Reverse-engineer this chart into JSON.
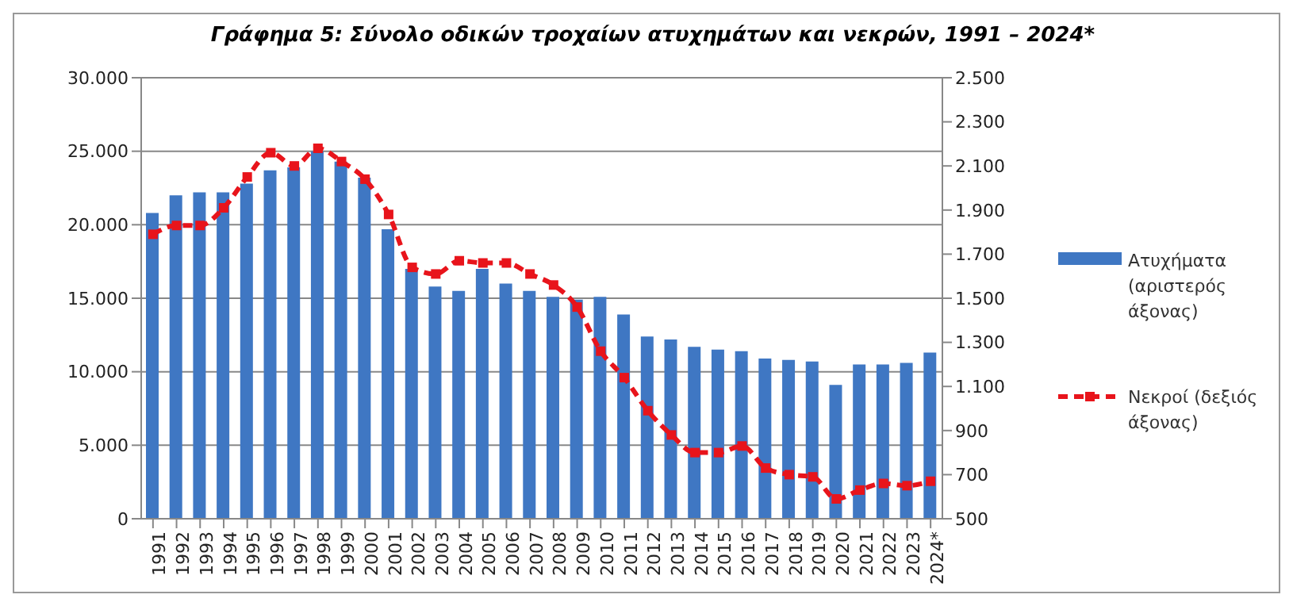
{
  "chart_data": {
    "type": "bar",
    "title": "Γράφημα 5: Σύνολο οδικών τροχαίων ατυχημάτων και νεκρών, 1991 – 2024*",
    "categories": [
      "1991",
      "1992",
      "1993",
      "1994",
      "1995",
      "1996",
      "1997",
      "1998",
      "1999",
      "2000",
      "2001",
      "2002",
      "2003",
      "2004",
      "2005",
      "2006",
      "2007",
      "2008",
      "2009",
      "2010",
      "2011",
      "2012",
      "2013",
      "2014",
      "2015",
      "2016",
      "2017",
      "2018",
      "2019",
      "2020",
      "2021",
      "2022",
      "2023",
      "2024*"
    ],
    "series": [
      {
        "name": "Ατυχήματα (αριστερός άξονας)",
        "color": "#3f77c3",
        "values": [
          20800,
          22000,
          22200,
          22200,
          22800,
          23700,
          23900,
          25000,
          24300,
          23200,
          19700,
          17000,
          15800,
          15500,
          17000,
          16000,
          15500,
          15100,
          14900,
          15100,
          13900,
          12400,
          12200,
          11700,
          11500,
          11400,
          10900,
          10800,
          10700,
          9100,
          10500,
          10500,
          10600,
          11300
        ]
      },
      {
        "name": "Νεκροί (δεξιός άξονας)",
        "type": "line",
        "axis": "y2",
        "color": "#e8141b",
        "marker": "square",
        "line_style": "dashed",
        "values": [
          1790,
          1830,
          1830,
          1910,
          2050,
          2160,
          2100,
          2180,
          2120,
          2040,
          1880,
          1640,
          1610,
          1670,
          1660,
          1660,
          1610,
          1560,
          1460,
          1260,
          1140,
          990,
          880,
          800,
          800,
          830,
          730,
          700,
          690,
          590,
          630,
          660,
          650,
          670
        ]
      }
    ],
    "ylim": [
      0,
      30000
    ],
    "yticks": [
      {
        "value": 0,
        "label": "0"
      },
      {
        "value": 5000,
        "label": "5.000"
      },
      {
        "value": 10000,
        "label": "10.000"
      },
      {
        "value": 15000,
        "label": "15.000"
      },
      {
        "value": 20000,
        "label": "20.000"
      },
      {
        "value": 25000,
        "label": "25.000"
      },
      {
        "value": 30000,
        "label": "30.000"
      }
    ],
    "y2lim": [
      500,
      2500
    ],
    "y2ticks": [
      500,
      700,
      900,
      {
        "value": 1100,
        "label": "1.100"
      },
      {
        "value": 1300,
        "label": "1.300"
      },
      {
        "value": 1500,
        "label": "1.500"
      },
      {
        "value": 1700,
        "label": "1.700"
      },
      {
        "value": 1900,
        "label": "1.900"
      },
      {
        "value": 2100,
        "label": "2.100"
      },
      {
        "value": 2300,
        "label": "2.300"
      },
      {
        "value": 2500,
        "label": "2.500"
      }
    ],
    "grid": "y",
    "legend": "right"
  }
}
